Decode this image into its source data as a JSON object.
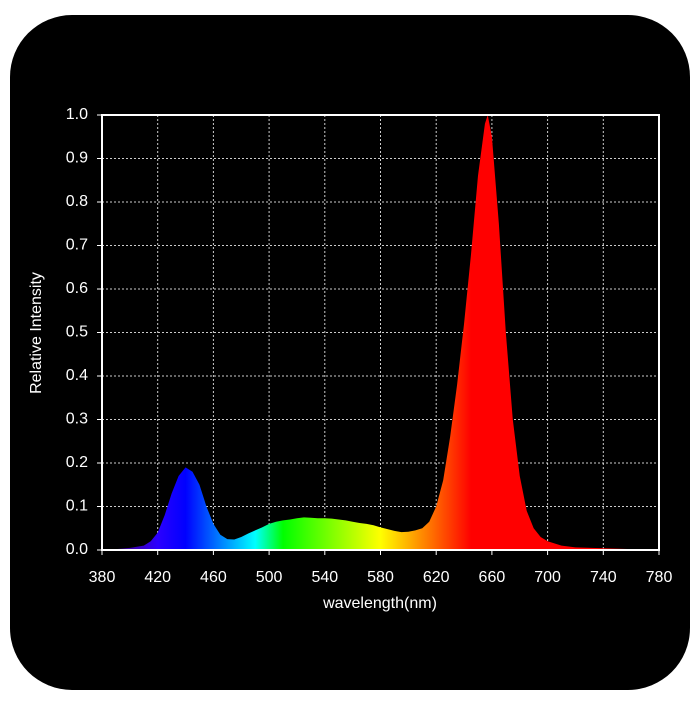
{
  "chart_data": {
    "type": "area",
    "x_label": "wavelength(nm)",
    "y_label": "Relative Intensity",
    "x": [
      380,
      390,
      400,
      410,
      415,
      420,
      425,
      430,
      435,
      440,
      445,
      450,
      455,
      460,
      465,
      470,
      475,
      480,
      485,
      490,
      495,
      500,
      505,
      510,
      515,
      520,
      525,
      530,
      535,
      540,
      545,
      550,
      555,
      560,
      565,
      570,
      575,
      580,
      585,
      590,
      595,
      600,
      605,
      610,
      615,
      620,
      625,
      630,
      635,
      640,
      645,
      650,
      655,
      657,
      660,
      665,
      670,
      675,
      680,
      685,
      690,
      695,
      700,
      710,
      720,
      740,
      760,
      780
    ],
    "values": [
      0,
      0.002,
      0.005,
      0.01,
      0.02,
      0.04,
      0.08,
      0.13,
      0.17,
      0.19,
      0.18,
      0.15,
      0.1,
      0.06,
      0.035,
      0.025,
      0.024,
      0.03,
      0.038,
      0.045,
      0.052,
      0.06,
      0.065,
      0.068,
      0.07,
      0.073,
      0.075,
      0.074,
      0.073,
      0.073,
      0.072,
      0.07,
      0.068,
      0.065,
      0.062,
      0.06,
      0.057,
      0.052,
      0.048,
      0.044,
      0.041,
      0.042,
      0.045,
      0.05,
      0.065,
      0.1,
      0.16,
      0.26,
      0.38,
      0.52,
      0.68,
      0.86,
      0.98,
      1.0,
      0.95,
      0.75,
      0.5,
      0.3,
      0.17,
      0.09,
      0.05,
      0.03,
      0.02,
      0.01,
      0.006,
      0.004,
      0.002,
      0.001
    ],
    "xlim": [
      380,
      780
    ],
    "ylim": [
      0,
      1
    ],
    "xticks": [
      380,
      420,
      460,
      500,
      540,
      580,
      620,
      660,
      700,
      740,
      780
    ],
    "yticks": [
      {
        "value": 0,
        "label": "0.0"
      },
      0.1,
      0.2,
      0.3,
      0.4,
      0.5,
      0.6,
      0.7,
      0.8,
      0.9,
      {
        "value": 1,
        "label": "1.0"
      }
    ],
    "grid": true
  }
}
